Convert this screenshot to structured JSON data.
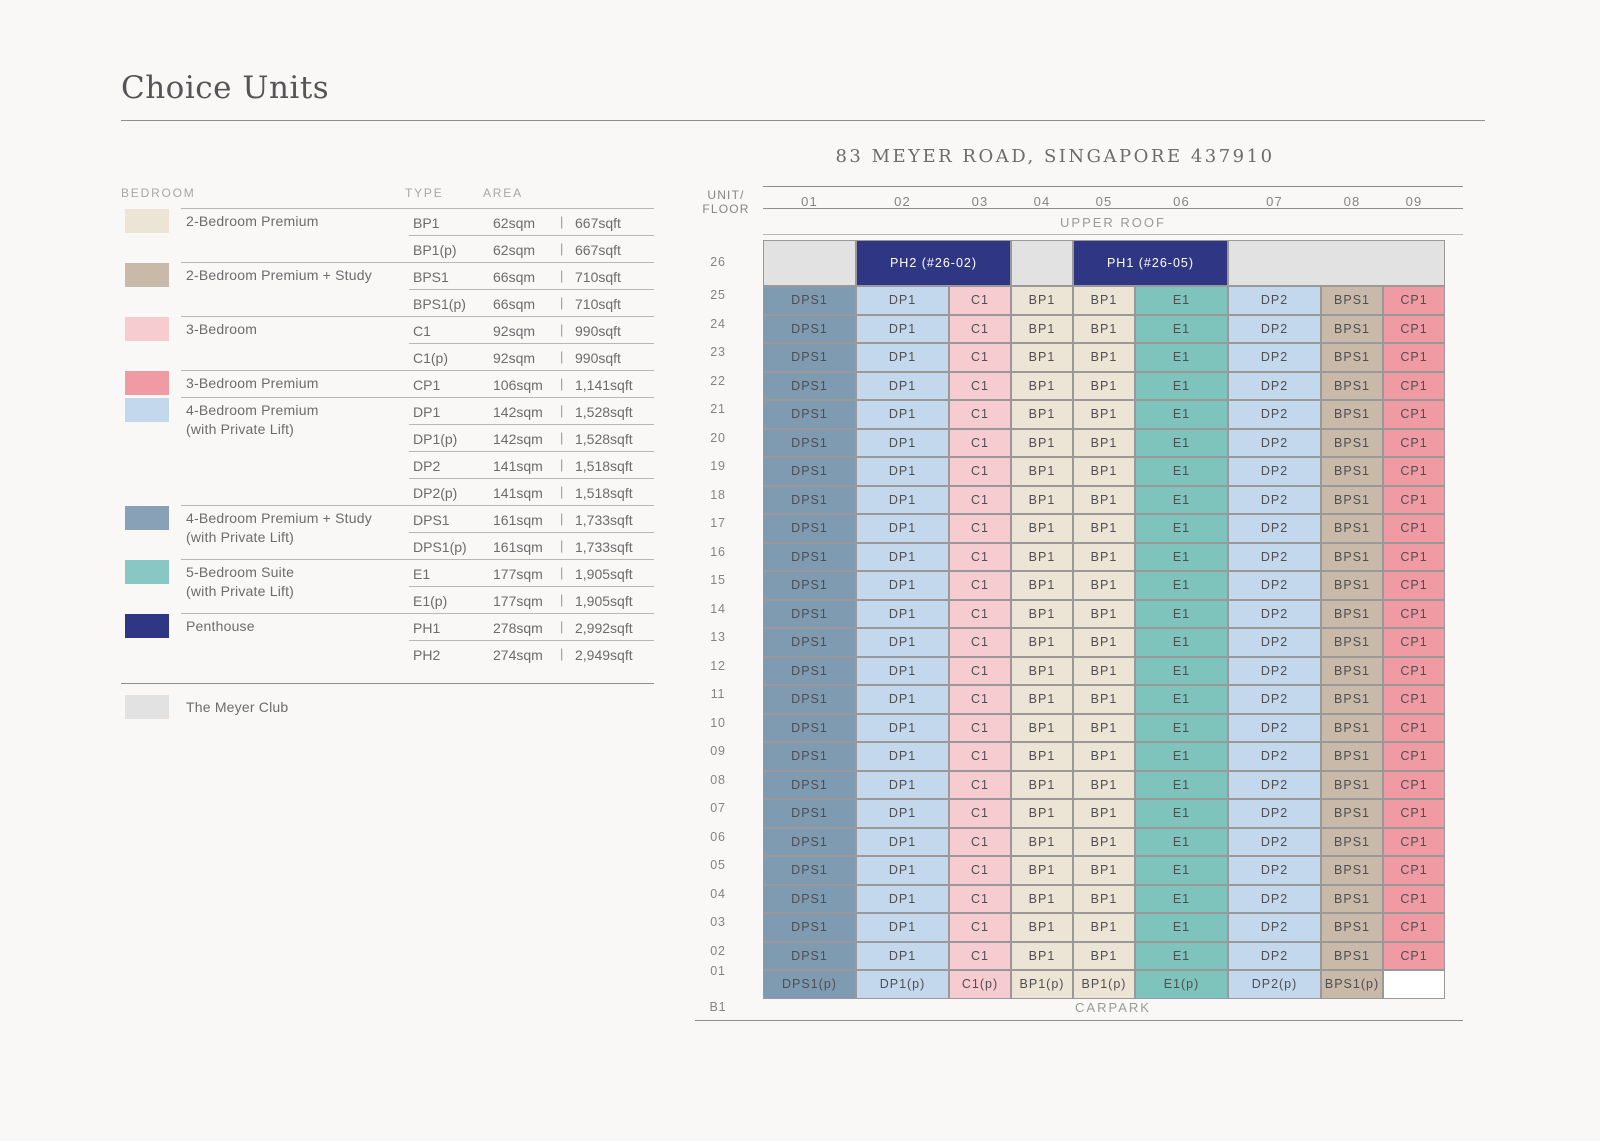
{
  "title": "Choice Units",
  "legend": {
    "headers": {
      "bedroom": "BEDROOM",
      "type": "TYPE",
      "area": "AREA"
    },
    "groups": [
      {
        "name": "2-Bedroom Premium",
        "color": "#ece4d4",
        "rows": [
          {
            "type": "BP1",
            "sqm": "62sqm",
            "sqft": "667sqft"
          },
          {
            "type": "BP1(p)",
            "sqm": "62sqm",
            "sqft": "667sqft"
          }
        ]
      },
      {
        "name": "2-Bedroom Premium + Study",
        "color": "#c8b9a9",
        "rows": [
          {
            "type": "BPS1",
            "sqm": "66sqm",
            "sqft": "710sqft"
          },
          {
            "type": "BPS1(p)",
            "sqm": "66sqm",
            "sqft": "710sqft"
          }
        ]
      },
      {
        "name": "3-Bedroom",
        "color": "#f6ccd0",
        "rows": [
          {
            "type": "C1",
            "sqm": "92sqm",
            "sqft": "990sqft"
          },
          {
            "type": "C1(p)",
            "sqm": "92sqm",
            "sqft": "990sqft"
          }
        ]
      },
      {
        "name": "3-Bedroom Premium",
        "color": "#f09ba3",
        "rows": [
          {
            "type": "CP1",
            "sqm": "106sqm",
            "sqft": "1,141sqft"
          }
        ]
      },
      {
        "name": "4-Bedroom Premium\n(with Private Lift)",
        "color": "#c3d8ec",
        "rows": [
          {
            "type": "DP1",
            "sqm": "142sqm",
            "sqft": "1,528sqft"
          },
          {
            "type": "DP1(p)",
            "sqm": "142sqm",
            "sqft": "1,528sqft"
          },
          {
            "type": "DP2",
            "sqm": "141sqm",
            "sqft": "1,518sqft"
          },
          {
            "type": "DP2(p)",
            "sqm": "141sqm",
            "sqft": "1,518sqft"
          }
        ]
      },
      {
        "name": "4-Bedroom Premium + Study\n(with Private Lift)",
        "color": "#88a1b6",
        "rows": [
          {
            "type": "DPS1",
            "sqm": "161sqm",
            "sqft": "1,733sqft"
          },
          {
            "type": "DPS1(p)",
            "sqm": "161sqm",
            "sqft": "1,733sqft"
          }
        ]
      },
      {
        "name": "5-Bedroom Suite\n(with Private Lift)",
        "color": "#88c7c3",
        "rows": [
          {
            "type": "E1",
            "sqm": "177sqm",
            "sqft": "1,905sqft"
          },
          {
            "type": "E1(p)",
            "sqm": "177sqm",
            "sqft": "1,905sqft"
          }
        ]
      },
      {
        "name": "Penthouse",
        "color": "#2f3683",
        "rows": [
          {
            "type": "PH1",
            "sqm": "278sqm",
            "sqft": "2,992sqft"
          },
          {
            "type": "PH2",
            "sqm": "274sqm",
            "sqft": "2,949sqft"
          }
        ]
      }
    ],
    "club": {
      "name": "The Meyer Club",
      "color": "#e3e2e3"
    }
  },
  "chart": {
    "address": "83 MEYER ROAD, SINGAPORE 437910",
    "unit_floor_label": "UNIT/\nFLOOR",
    "upper_roof": "UPPER ROOF",
    "carpark": "CARPARK",
    "basement_label": "B1",
    "units": [
      "01",
      "02",
      "03",
      "04",
      "05",
      "06",
      "07",
      "08",
      "09"
    ],
    "penthouse_floor": "26",
    "penthouse_floor_cells": [
      {
        "label": "",
        "span": 1,
        "kind": "club"
      },
      {
        "label": "PH2 (#26-02)",
        "span": 2,
        "kind": "ph"
      },
      {
        "label": "",
        "span": 1,
        "kind": "club"
      },
      {
        "label": "PH1 (#26-05)",
        "span": 2,
        "kind": "ph"
      },
      {
        "label": "",
        "span": 3,
        "kind": "club"
      }
    ],
    "typical_floors": [
      "25",
      "24",
      "23",
      "22",
      "21",
      "20",
      "19",
      "18",
      "17",
      "16",
      "15",
      "14",
      "13",
      "12",
      "11",
      "10",
      "09",
      "08",
      "07",
      "06",
      "05",
      "04",
      "03",
      "02"
    ],
    "typical_types": [
      "DPS1",
      "DP1",
      "C1",
      "BP1",
      "BP1",
      "E1",
      "DP2",
      "BPS1",
      "CP1"
    ],
    "ground_floor": "01",
    "ground_types": [
      "DPS1(p)",
      "DP1(p)",
      "C1(p)",
      "BP1(p)",
      "BP1(p)",
      "E1(p)",
      "DP2(p)",
      "BPS1(p)",
      ""
    ],
    "type_colors": {
      "DPS1": "#7f9bb1",
      "DP1": "#c3d8ec",
      "C1": "#f6ccd0",
      "BP1": "#ece4d4",
      "E1": "#7fc3bd",
      "DP2": "#c3d8ec",
      "BPS1": "#c8b9a9",
      "CP1": "#f09ba3",
      "club": "#e3e2e3",
      "ph": "#2f3683",
      "empty": "#ffffff"
    }
  }
}
